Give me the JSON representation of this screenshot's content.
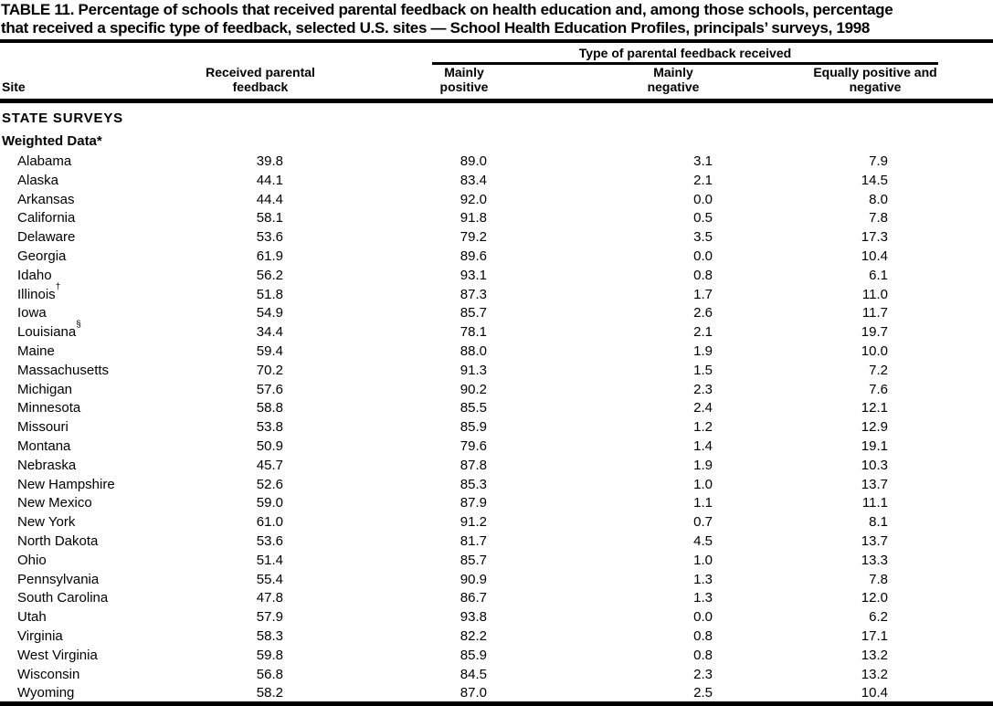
{
  "title": {
    "line1": "TABLE 11. Percentage of schools that received parental feedback on health education and, among those schools, percentage",
    "line2": "that received a specific type of feedback, selected U.S. sites — School Health Education Profiles, principals’ surveys, 1998"
  },
  "table": {
    "header": {
      "spanner": "Type of parental feedback received",
      "site": "Site",
      "received": "Received parental feedback",
      "mainly_positive": "Mainly positive",
      "mainly_negative": "Mainly negative",
      "equally": "Equally positive and negative"
    },
    "sections": {
      "state_surveys": "STATE SURVEYS",
      "weighted_data": "Weighted Data*"
    },
    "footnote_marks": {
      "illinois": "†",
      "louisiana": "§"
    },
    "rows": [
      {
        "site": "Alabama",
        "sup": "",
        "values": [
          "39.8",
          "89.0",
          "3.1",
          "7.9"
        ]
      },
      {
        "site": "Alaska",
        "sup": "",
        "values": [
          "44.1",
          "83.4",
          "2.1",
          "14.5"
        ]
      },
      {
        "site": "Arkansas",
        "sup": "",
        "values": [
          "44.4",
          "92.0",
          "0.0",
          "8.0"
        ]
      },
      {
        "site": "California",
        "sup": "",
        "values": [
          "58.1",
          "91.8",
          "0.5",
          "7.8"
        ]
      },
      {
        "site": "Delaware",
        "sup": "",
        "values": [
          "53.6",
          "79.2",
          "3.5",
          "17.3"
        ]
      },
      {
        "site": "Georgia",
        "sup": "",
        "values": [
          "61.9",
          "89.6",
          "0.0",
          "10.4"
        ]
      },
      {
        "site": "Idaho",
        "sup": "",
        "values": [
          "56.2",
          "93.1",
          "0.8",
          "6.1"
        ]
      },
      {
        "site": "Illinois",
        "sup": "†",
        "values": [
          "51.8",
          "87.3",
          "1.7",
          "11.0"
        ]
      },
      {
        "site": "Iowa",
        "sup": "",
        "values": [
          "54.9",
          "85.7",
          "2.6",
          "11.7"
        ]
      },
      {
        "site": "Louisiana",
        "sup": "§",
        "values": [
          "34.4",
          "78.1",
          "2.1",
          "19.7"
        ]
      },
      {
        "site": "Maine",
        "sup": "",
        "values": [
          "59.4",
          "88.0",
          "1.9",
          "10.0"
        ]
      },
      {
        "site": "Massachusetts",
        "sup": "",
        "values": [
          "70.2",
          "91.3",
          "1.5",
          "7.2"
        ]
      },
      {
        "site": "Michigan",
        "sup": "",
        "values": [
          "57.6",
          "90.2",
          "2.3",
          "7.6"
        ]
      },
      {
        "site": "Minnesota",
        "sup": "",
        "values": [
          "58.8",
          "85.5",
          "2.4",
          "12.1"
        ]
      },
      {
        "site": "Missouri",
        "sup": "",
        "values": [
          "53.8",
          "85.9",
          "1.2",
          "12.9"
        ]
      },
      {
        "site": "Montana",
        "sup": "",
        "values": [
          "50.9",
          "79.6",
          "1.4",
          "19.1"
        ]
      },
      {
        "site": "Nebraska",
        "sup": "",
        "values": [
          "45.7",
          "87.8",
          "1.9",
          "10.3"
        ]
      },
      {
        "site": "New Hampshire",
        "sup": "",
        "values": [
          "52.6",
          "85.3",
          "1.0",
          "13.7"
        ]
      },
      {
        "site": "New Mexico",
        "sup": "",
        "values": [
          "59.0",
          "87.9",
          "1.1",
          "11.1"
        ]
      },
      {
        "site": "New York",
        "sup": "",
        "values": [
          "61.0",
          "91.2",
          "0.7",
          "8.1"
        ]
      },
      {
        "site": "North Dakota",
        "sup": "",
        "values": [
          "53.6",
          "81.7",
          "4.5",
          "13.7"
        ]
      },
      {
        "site": "Ohio",
        "sup": "",
        "values": [
          "51.4",
          "85.7",
          "1.0",
          "13.3"
        ]
      },
      {
        "site": "Pennsylvania",
        "sup": "",
        "values": [
          "55.4",
          "90.9",
          "1.3",
          "7.8"
        ]
      },
      {
        "site": "South Carolina",
        "sup": "",
        "values": [
          "47.8",
          "86.7",
          "1.3",
          "12.0"
        ]
      },
      {
        "site": "Utah",
        "sup": "",
        "values": [
          "57.9",
          "93.8",
          "0.0",
          "6.2"
        ]
      },
      {
        "site": "Virginia",
        "sup": "",
        "values": [
          "58.3",
          "82.2",
          "0.8",
          "17.1"
        ]
      },
      {
        "site": "West Virginia",
        "sup": "",
        "values": [
          "59.8",
          "85.9",
          "0.8",
          "13.2"
        ]
      },
      {
        "site": "Wisconsin",
        "sup": "",
        "values": [
          "56.8",
          "84.5",
          "2.3",
          "13.2"
        ]
      },
      {
        "site": "Wyoming",
        "sup": "",
        "values": [
          "58.2",
          "87.0",
          "2.5",
          "10.4"
        ]
      }
    ]
  },
  "colors": {
    "text": "#000000",
    "background": "#ffffff",
    "rule": "#000000"
  }
}
